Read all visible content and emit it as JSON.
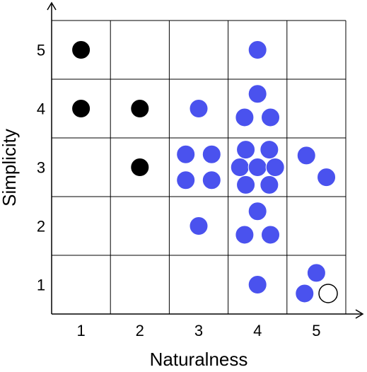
{
  "chart_data": {
    "type": "scatter",
    "title": "",
    "xlabel": "Naturalness",
    "ylabel": "Simplicity",
    "xlim": [
      0.5,
      5.5
    ],
    "ylim": [
      0.5,
      5.5
    ],
    "x_ticks": [
      "1",
      "2",
      "3",
      "4",
      "5"
    ],
    "y_ticks": [
      "1",
      "2",
      "3",
      "4",
      "5"
    ],
    "grid": true,
    "colors": {
      "black": "#000000",
      "blue": "#4a52ee",
      "hollow": "#ffffff"
    },
    "points": [
      {
        "x": 1.0,
        "y": 5.0,
        "style": "black"
      },
      {
        "x": 1.0,
        "y": 4.0,
        "style": "black"
      },
      {
        "x": 2.0,
        "y": 4.0,
        "style": "black"
      },
      {
        "x": 2.0,
        "y": 3.0,
        "style": "black"
      },
      {
        "x": 4.0,
        "y": 5.0,
        "style": "blue"
      },
      {
        "x": 3.0,
        "y": 4.0,
        "style": "blue"
      },
      {
        "x": 4.0,
        "y": 4.25,
        "style": "blue"
      },
      {
        "x": 3.78,
        "y": 3.85,
        "style": "blue"
      },
      {
        "x": 4.22,
        "y": 3.85,
        "style": "blue"
      },
      {
        "x": 2.78,
        "y": 3.22,
        "style": "blue"
      },
      {
        "x": 3.22,
        "y": 3.22,
        "style": "blue"
      },
      {
        "x": 2.78,
        "y": 2.78,
        "style": "blue"
      },
      {
        "x": 3.22,
        "y": 2.78,
        "style": "blue"
      },
      {
        "x": 3.8,
        "y": 3.3,
        "style": "blue"
      },
      {
        "x": 4.2,
        "y": 3.3,
        "style": "blue"
      },
      {
        "x": 3.7,
        "y": 3.0,
        "style": "blue"
      },
      {
        "x": 4.0,
        "y": 3.0,
        "style": "blue"
      },
      {
        "x": 4.3,
        "y": 3.0,
        "style": "blue"
      },
      {
        "x": 3.8,
        "y": 2.7,
        "style": "blue"
      },
      {
        "x": 4.2,
        "y": 2.7,
        "style": "blue"
      },
      {
        "x": 4.83,
        "y": 3.2,
        "style": "blue"
      },
      {
        "x": 5.17,
        "y": 2.83,
        "style": "blue"
      },
      {
        "x": 3.0,
        "y": 2.0,
        "style": "blue"
      },
      {
        "x": 4.0,
        "y": 2.25,
        "style": "blue"
      },
      {
        "x": 3.78,
        "y": 1.85,
        "style": "blue"
      },
      {
        "x": 4.22,
        "y": 1.85,
        "style": "blue"
      },
      {
        "x": 4.0,
        "y": 1.0,
        "style": "blue"
      },
      {
        "x": 5.0,
        "y": 1.2,
        "style": "blue"
      },
      {
        "x": 4.8,
        "y": 0.85,
        "style": "blue"
      },
      {
        "x": 5.2,
        "y": 0.85,
        "style": "hollow"
      }
    ]
  }
}
